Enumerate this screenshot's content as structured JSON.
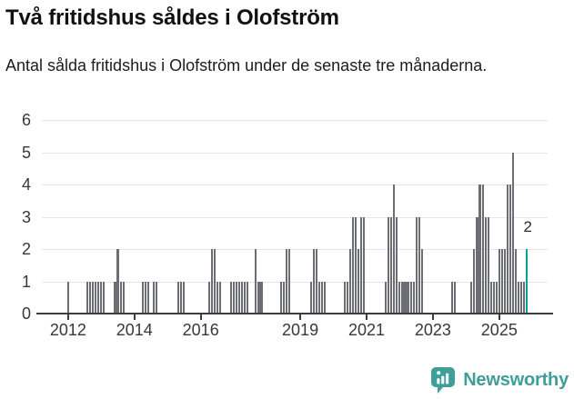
{
  "title": "Två fritidshus såldes i Olofström",
  "subtitle": "Antal sålda fritidshus i Olofström under de senaste tre månaderna.",
  "footer": {
    "brand": "Newsworthy"
  },
  "colors": {
    "bar": "#6d6d75",
    "highlight": "#00a29c",
    "axis": "#3d3d3d",
    "grid": "#e7e7e7",
    "brand_teal": "#3f9e99",
    "text": "#383838"
  },
  "chart_data": {
    "type": "bar",
    "title": "Två fritidshus såldes i Olofström",
    "subtitle": "Antal sålda fritidshus i Olofström under de senaste tre månaderna.",
    "xlabel": "",
    "ylabel": "",
    "ylim": [
      0,
      6
    ],
    "y_ticks": [
      0,
      1,
      2,
      3,
      4,
      5,
      6
    ],
    "grid": "horizontal-only",
    "legend": "none",
    "start_month": "2011-04",
    "months_total": 183,
    "x_ticks": [
      {
        "label": "2012",
        "month_index": 9
      },
      {
        "label": "2014",
        "month_index": 33
      },
      {
        "label": "2016",
        "month_index": 57
      },
      {
        "label": "2019",
        "month_index": 93
      },
      {
        "label": "2021",
        "month_index": 117
      },
      {
        "label": "2023",
        "month_index": 141
      },
      {
        "label": "2025",
        "month_index": 165
      }
    ],
    "highlight": {
      "month_index": 175,
      "month": "2025-11",
      "value": 2,
      "label": "2"
    },
    "values": [
      0,
      0,
      0,
      0,
      0,
      0,
      0,
      0,
      0,
      1,
      0,
      0,
      0,
      0,
      0,
      0,
      1,
      1,
      1,
      1,
      1,
      1,
      1,
      0,
      0,
      0,
      1,
      2,
      1,
      1,
      0,
      0,
      0,
      0,
      0,
      0,
      1,
      1,
      1,
      0,
      1,
      1,
      0,
      0,
      0,
      0,
      0,
      0,
      0,
      1,
      1,
      1,
      0,
      0,
      0,
      0,
      0,
      0,
      0,
      0,
      1,
      2,
      2,
      1,
      1,
      0,
      0,
      0,
      1,
      1,
      1,
      1,
      1,
      1,
      1,
      0,
      0,
      2,
      1,
      1,
      0,
      0,
      0,
      0,
      0,
      0,
      1,
      1,
      2,
      2,
      0,
      0,
      0,
      0,
      0,
      0,
      0,
      1,
      2,
      2,
      1,
      1,
      1,
      0,
      0,
      0,
      0,
      0,
      0,
      1,
      1,
      2,
      3,
      3,
      2,
      3,
      3,
      0,
      0,
      0,
      0,
      0,
      0,
      0,
      1,
      3,
      3,
      4,
      3,
      1,
      1,
      1,
      1,
      1,
      1,
      3,
      3,
      2,
      0,
      0,
      0,
      0,
      0,
      0,
      0,
      0,
      0,
      0,
      1,
      1,
      0,
      0,
      0,
      0,
      0,
      1,
      2,
      3,
      4,
      4,
      3,
      3,
      1,
      1,
      1,
      2,
      2,
      2,
      4,
      4,
      5,
      2,
      1,
      1,
      1,
      2,
      0,
      0,
      0,
      0,
      0,
      0,
      0
    ]
  }
}
